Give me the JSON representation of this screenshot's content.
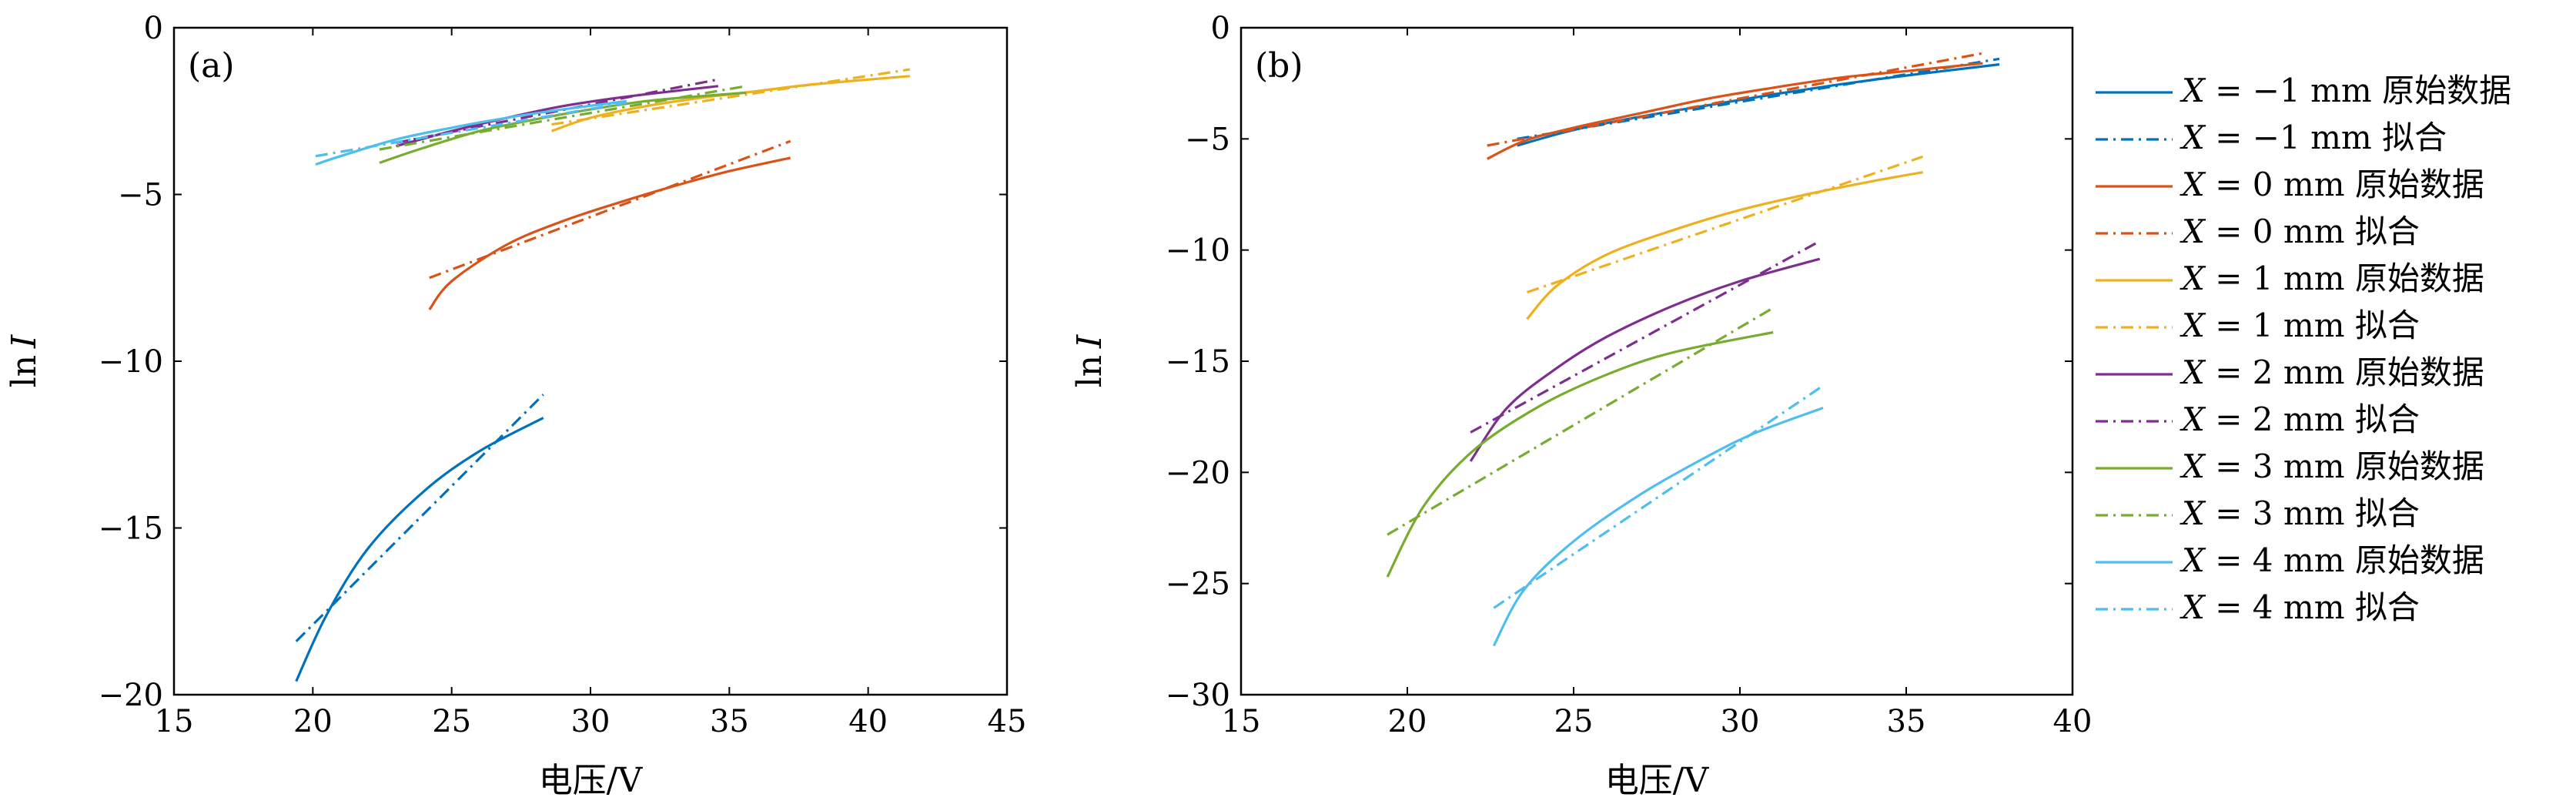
{
  "chart_data": [
    {
      "type": "line",
      "panel": "(a)",
      "xlabel": "电压/V",
      "ylabel": "ln I",
      "xlim": [
        15,
        45
      ],
      "ylim": [
        -20,
        0
      ],
      "xticks": [
        15,
        20,
        25,
        30,
        35,
        40,
        45
      ],
      "xtick_labels": [
        "15",
        "20",
        "25",
        "30",
        "35",
        "40",
        "45"
      ],
      "yticks": [
        0,
        -5,
        -10,
        -15,
        -20
      ],
      "ytick_labels": [
        "0",
        "−5",
        "−10",
        "−15",
        "−20"
      ],
      "series": [
        {
          "name": "X = −1 mm 原始数据",
          "color": "#0072bd",
          "style": "solid",
          "x": [
            19.4,
            20.5,
            22,
            24,
            26,
            28.3
          ],
          "y": [
            -19.6,
            -17.6,
            -15.6,
            -13.9,
            -12.7,
            -11.7
          ]
        },
        {
          "name": "X = −1 mm 拟合",
          "color": "#0072bd",
          "style": "dashdot",
          "x": [
            19.4,
            28.3
          ],
          "y": [
            -18.4,
            -11.0
          ]
        },
        {
          "name": "X = 0 mm 原始数据",
          "color": "#d95319",
          "style": "solid",
          "x": [
            24.2,
            25,
            27,
            29,
            31,
            33,
            35,
            37.2
          ],
          "y": [
            -8.45,
            -7.6,
            -6.5,
            -5.8,
            -5.25,
            -4.75,
            -4.3,
            -3.9
          ]
        },
        {
          "name": "X = 0 mm 拟合",
          "color": "#d95319",
          "style": "dashdot",
          "x": [
            24.2,
            37.2
          ],
          "y": [
            -7.5,
            -3.4
          ]
        },
        {
          "name": "X = 1 mm 原始数据",
          "color": "#edb120",
          "style": "solid",
          "x": [
            28.6,
            30,
            32,
            34,
            36,
            38,
            41.5
          ],
          "y": [
            -3.1,
            -2.7,
            -2.35,
            -2.1,
            -1.9,
            -1.7,
            -1.45
          ]
        },
        {
          "name": "X = 1 mm 拟合",
          "color": "#edb120",
          "style": "dashdot",
          "x": [
            28.6,
            41.5
          ],
          "y": [
            -2.9,
            -1.25
          ]
        },
        {
          "name": "X = 2 mm 原始数据",
          "color": "#7e2f8e",
          "style": "solid",
          "x": [
            23,
            25,
            27,
            29,
            31,
            33,
            34.6
          ],
          "y": [
            -3.55,
            -3.1,
            -2.7,
            -2.35,
            -2.1,
            -1.9,
            -1.75
          ]
        },
        {
          "name": "X = 2 mm 拟合",
          "color": "#7e2f8e",
          "style": "dashdot",
          "x": [
            23,
            34.6
          ],
          "y": [
            -3.45,
            -1.55
          ]
        },
        {
          "name": "X = 3 mm 原始数据",
          "color": "#77ac30",
          "style": "solid",
          "x": [
            22.4,
            24,
            26,
            28,
            30,
            32,
            34,
            35.6
          ],
          "y": [
            -4.05,
            -3.6,
            -3.1,
            -2.75,
            -2.45,
            -2.2,
            -2.05,
            -1.95
          ]
        },
        {
          "name": "X = 3 mm 拟合",
          "color": "#77ac30",
          "style": "dashdot",
          "x": [
            22.4,
            35.6
          ],
          "y": [
            -3.65,
            -1.75
          ]
        },
        {
          "name": "X = 4 mm 原始数据",
          "color": "#4dbeee",
          "style": "solid",
          "x": [
            20.1,
            21,
            23,
            25,
            27,
            29,
            31.3
          ],
          "y": [
            -4.1,
            -3.85,
            -3.35,
            -3.0,
            -2.7,
            -2.45,
            -2.2
          ]
        },
        {
          "name": "X = 4 mm 拟合",
          "color": "#4dbeee",
          "style": "dashdot",
          "x": [
            20.1,
            31.3
          ],
          "y": [
            -3.85,
            -2.25
          ]
        }
      ]
    },
    {
      "type": "line",
      "panel": "(b)",
      "xlabel": "电压/V",
      "ylabel": "ln I",
      "xlim": [
        15,
        40
      ],
      "ylim": [
        -30,
        0
      ],
      "xticks": [
        15,
        20,
        25,
        30,
        35,
        40
      ],
      "xtick_labels": [
        "15",
        "20",
        "25",
        "30",
        "35",
        "40"
      ],
      "yticks": [
        0,
        -5,
        -10,
        -15,
        -20,
        -25,
        -30
      ],
      "ytick_labels": [
        "0",
        "−5",
        "−10",
        "−15",
        "−20",
        "−25",
        "−30"
      ],
      "series": [
        {
          "name": "X = −1 mm 原始数据",
          "color": "#0072bd",
          "style": "solid",
          "x": [
            23.3,
            25,
            27,
            29,
            31,
            33,
            35,
            37.8
          ],
          "y": [
            -5.3,
            -4.6,
            -4.0,
            -3.5,
            -3.0,
            -2.55,
            -2.15,
            -1.65
          ]
        },
        {
          "name": "X = −1 mm 拟合",
          "color": "#0072bd",
          "style": "dashdot",
          "x": [
            23.3,
            37.8
          ],
          "y": [
            -5.0,
            -1.4
          ]
        },
        {
          "name": "X = 0 mm 原始数据",
          "color": "#d95319",
          "style": "solid",
          "x": [
            22.4,
            23.5,
            25,
            27,
            29,
            31,
            33,
            35,
            37.3
          ],
          "y": [
            -5.9,
            -5.1,
            -4.5,
            -3.85,
            -3.2,
            -2.7,
            -2.25,
            -1.95,
            -1.6
          ]
        },
        {
          "name": "X = 0 mm 拟合",
          "color": "#d95319",
          "style": "dashdot",
          "x": [
            22.4,
            37.3
          ],
          "y": [
            -5.3,
            -1.15
          ]
        },
        {
          "name": "X = 1 mm 原始数据",
          "color": "#edb120",
          "style": "solid",
          "x": [
            23.6,
            24.5,
            26,
            28,
            30,
            32,
            34,
            35.5
          ],
          "y": [
            -13.1,
            -11.6,
            -10.2,
            -9.1,
            -8.2,
            -7.5,
            -6.9,
            -6.5
          ]
        },
        {
          "name": "X = 1 mm 拟合",
          "color": "#edb120",
          "style": "dashdot",
          "x": [
            23.6,
            35.5
          ],
          "y": [
            -11.9,
            -5.8
          ]
        },
        {
          "name": "X = 2 mm 原始数据",
          "color": "#7e2f8e",
          "style": "solid",
          "x": [
            21.9,
            23,
            24.5,
            26,
            28,
            30,
            32.4
          ],
          "y": [
            -19.5,
            -17.1,
            -15.3,
            -13.9,
            -12.5,
            -11.4,
            -10.4
          ]
        },
        {
          "name": "X = 2 mm 拟合",
          "color": "#7e2f8e",
          "style": "dashdot",
          "x": [
            21.9,
            32.4
          ],
          "y": [
            -18.2,
            -9.6
          ]
        },
        {
          "name": "X = 3 mm 原始数据",
          "color": "#77ac30",
          "style": "solid",
          "x": [
            19.4,
            20.5,
            22,
            24,
            26,
            28,
            31
          ],
          "y": [
            -24.7,
            -21.5,
            -19.0,
            -17.0,
            -15.6,
            -14.6,
            -13.7
          ]
        },
        {
          "name": "X = 3 mm 拟合",
          "color": "#77ac30",
          "style": "dashdot",
          "x": [
            19.4,
            31
          ],
          "y": [
            -22.8,
            -12.6
          ]
        },
        {
          "name": "X = 4 mm 原始数据",
          "color": "#4dbeee",
          "style": "solid",
          "x": [
            22.6,
            23.5,
            25,
            27,
            29,
            30.5,
            32.5
          ],
          "y": [
            -27.8,
            -25.3,
            -23.1,
            -21.0,
            -19.3,
            -18.2,
            -17.1
          ]
        },
        {
          "name": "X = 4 mm 拟合",
          "color": "#4dbeee",
          "style": "dashdot",
          "x": [
            22.6,
            32.5
          ],
          "y": [
            -26.1,
            -16.1
          ]
        }
      ]
    }
  ],
  "legend": [
    {
      "var": "X",
      "value": "= −1 mm",
      "suffix": "原始数据",
      "color": "#0072bd",
      "style": "solid"
    },
    {
      "var": "X",
      "value": "= −1 mm",
      "suffix": "拟合",
      "color": "#0072bd",
      "style": "dashdot"
    },
    {
      "var": "X",
      "value": "= 0 mm",
      "suffix": "原始数据",
      "color": "#d95319",
      "style": "solid"
    },
    {
      "var": "X",
      "value": "= 0 mm",
      "suffix": "拟合",
      "color": "#d95319",
      "style": "dashdot"
    },
    {
      "var": "X",
      "value": "= 1 mm",
      "suffix": "原始数据",
      "color": "#edb120",
      "style": "solid"
    },
    {
      "var": "X",
      "value": "= 1 mm",
      "suffix": "拟合",
      "color": "#edb120",
      "style": "dashdot"
    },
    {
      "var": "X",
      "value": "= 2 mm",
      "suffix": "原始数据",
      "color": "#7e2f8e",
      "style": "solid"
    },
    {
      "var": "X",
      "value": "= 2 mm",
      "suffix": "拟合",
      "color": "#7e2f8e",
      "style": "dashdot"
    },
    {
      "var": "X",
      "value": "= 3 mm",
      "suffix": "原始数据",
      "color": "#77ac30",
      "style": "solid"
    },
    {
      "var": "X",
      "value": "= 3 mm",
      "suffix": "拟合",
      "color": "#77ac30",
      "style": "dashdot"
    },
    {
      "var": "X",
      "value": "= 4 mm",
      "suffix": "原始数据",
      "color": "#4dbeee",
      "style": "solid"
    },
    {
      "var": "X",
      "value": "= 4 mm",
      "suffix": "拟合",
      "color": "#4dbeee",
      "style": "dashdot"
    }
  ]
}
